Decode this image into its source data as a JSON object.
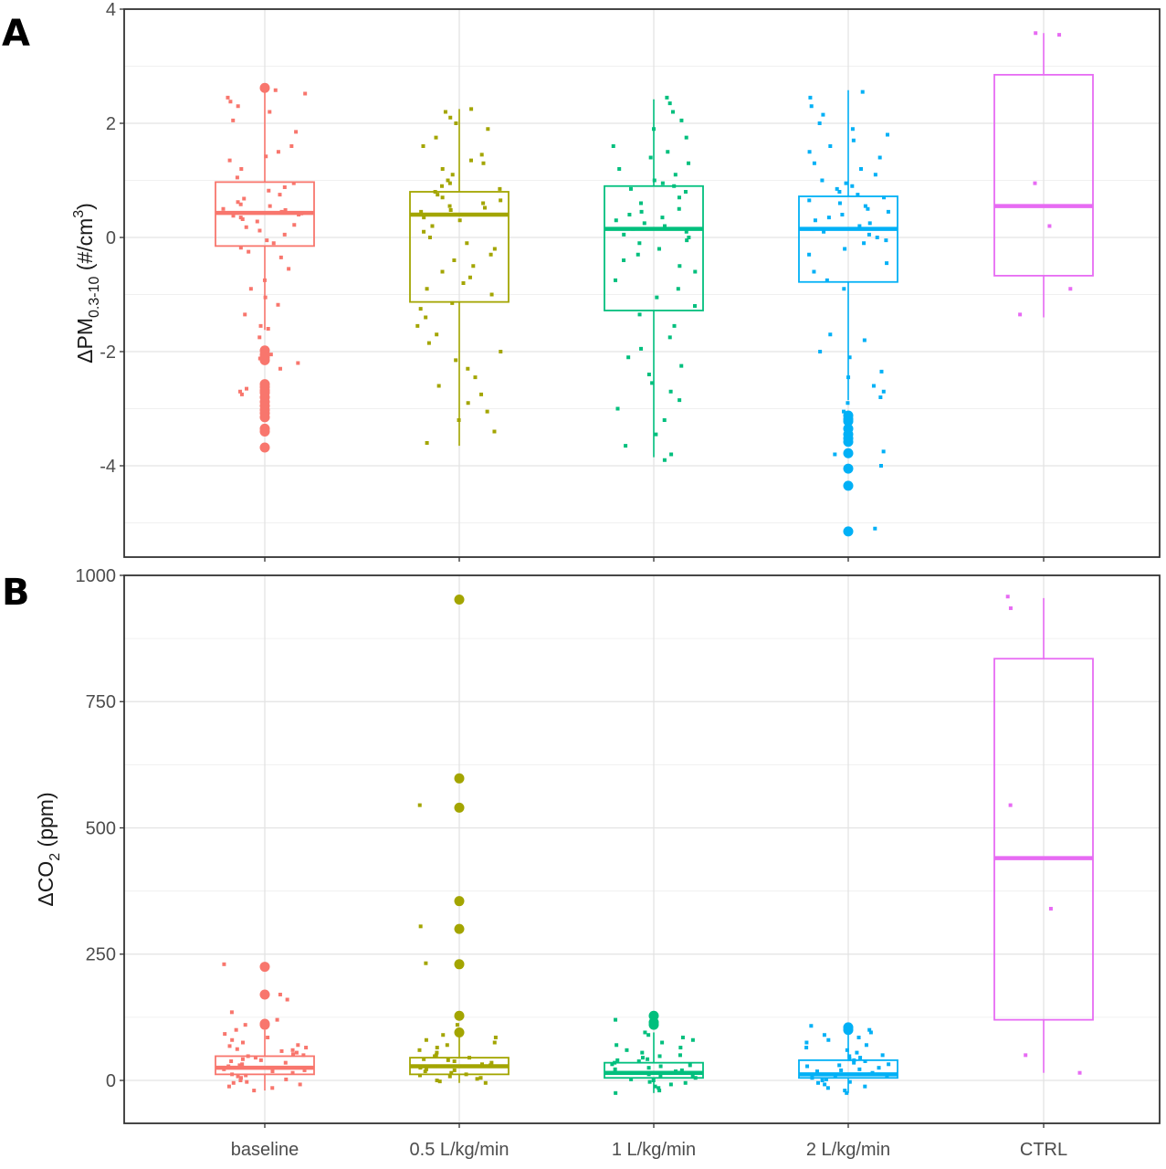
{
  "chart_data": [
    {
      "type": "box",
      "panel_label": "A",
      "ylabel": {
        "prefix": "ΔPM",
        "subscript": "0.3-10",
        "unit_open": " (#/cm",
        "superscript": "3",
        "unit_close": ")"
      },
      "ylim": [
        -5.6,
        4.0
      ],
      "yticks": [
        -4,
        -2,
        0,
        2,
        4
      ],
      "grid": true,
      "categories": [
        "baseline",
        "0.5 L/kg/min",
        "1 L/kg/min",
        "2 L/kg/min",
        "CTRL"
      ],
      "colors": [
        "#F8766D",
        "#A3A500",
        "#00BF7D",
        "#00B0F6",
        "#E76BF3"
      ],
      "boxes": [
        {
          "q1": -0.15,
          "median": 0.43,
          "q3": 0.97,
          "whisker_low": -1.62,
          "whisker_high": 2.62
        },
        {
          "q1": -1.13,
          "median": 0.4,
          "q3": 0.8,
          "whisker_low": -3.65,
          "whisker_high": 2.25
        },
        {
          "q1": -1.28,
          "median": 0.15,
          "q3": 0.9,
          "whisker_low": -3.85,
          "whisker_high": 2.42
        },
        {
          "q1": -0.78,
          "median": 0.15,
          "q3": 0.72,
          "whisker_low": -2.85,
          "whisker_high": 2.58
        },
        {
          "q1": -0.67,
          "median": 0.55,
          "q3": 2.85,
          "whisker_low": -1.4,
          "whisker_high": 3.58
        }
      ],
      "outliers": [
        [
          2.62,
          -1.98,
          -2.05,
          -2.1,
          -2.15,
          -2.57,
          -2.62,
          -2.68,
          -2.72,
          -2.8,
          -2.88,
          -2.95,
          -3.02,
          -3.08,
          -3.15,
          -3.35,
          -3.4,
          -3.68
        ],
        [],
        [],
        [
          -3.12,
          -3.18,
          -3.22,
          -3.35,
          -3.45,
          -3.52,
          -3.58,
          -3.78,
          -4.05,
          -4.35,
          -5.15
        ],
        []
      ],
      "jitter": [
        [
          2.58,
          2.52,
          2.45,
          2.38,
          2.3,
          2.2,
          2.05,
          1.85,
          1.6,
          1.5,
          1.42,
          1.35,
          1.2,
          1.05,
          0.95,
          0.88,
          0.82,
          0.75,
          0.68,
          0.62,
          0.58,
          0.55,
          0.5,
          0.48,
          0.45,
          0.42,
          0.4,
          0.38,
          0.35,
          0.32,
          0.28,
          0.22,
          0.18,
          0.12,
          0.05,
          -0.05,
          -0.1,
          -0.18,
          -0.25,
          -0.35,
          -0.55,
          -0.75,
          -0.9,
          -1.05,
          -1.18,
          -1.35,
          -1.55,
          -1.6,
          -1.75,
          -1.95,
          -2.05,
          -2.12,
          -2.2,
          -2.3,
          -2.55,
          -2.65,
          -2.7,
          -2.75
        ],
        [
          2.25,
          2.2,
          2.1,
          2.0,
          1.9,
          1.75,
          1.6,
          1.45,
          1.35,
          1.3,
          1.2,
          1.1,
          1.0,
          0.95,
          0.9,
          0.85,
          0.8,
          0.75,
          0.7,
          0.65,
          0.6,
          0.55,
          0.52,
          0.48,
          0.45,
          0.4,
          0.35,
          0.3,
          0.2,
          0.1,
          0.0,
          -0.1,
          -0.2,
          -0.3,
          -0.4,
          -0.5,
          -0.6,
          -0.7,
          -0.8,
          -0.9,
          -1.0,
          -1.15,
          -1.25,
          -1.4,
          -1.55,
          -1.7,
          -1.85,
          -2.0,
          -2.15,
          -2.3,
          -2.45,
          -2.6,
          -2.75,
          -2.9,
          -3.05,
          -3.2,
          -3.4,
          -3.6
        ],
        [
          2.45,
          2.35,
          2.2,
          2.05,
          1.9,
          1.75,
          1.6,
          1.5,
          1.4,
          1.3,
          1.2,
          1.1,
          1.0,
          0.95,
          0.9,
          0.85,
          0.8,
          0.7,
          0.6,
          0.5,
          0.45,
          0.4,
          0.35,
          0.3,
          0.25,
          0.2,
          0.15,
          0.1,
          0.05,
          0.0,
          -0.05,
          -0.1,
          -0.2,
          -0.3,
          -0.4,
          -0.5,
          -0.6,
          -0.75,
          -0.9,
          -1.05,
          -1.2,
          -1.35,
          -1.55,
          -1.75,
          -1.95,
          -2.1,
          -2.25,
          -2.4,
          -2.55,
          -2.7,
          -2.85,
          -3.0,
          -3.2,
          -3.45,
          -3.65,
          -3.8,
          -3.9
        ],
        [
          2.55,
          2.45,
          2.3,
          2.15,
          2.0,
          1.9,
          1.8,
          1.7,
          1.6,
          1.5,
          1.4,
          1.3,
          1.2,
          1.1,
          1.0,
          0.95,
          0.9,
          0.85,
          0.8,
          0.75,
          0.7,
          0.65,
          0.6,
          0.55,
          0.5,
          0.45,
          0.4,
          0.35,
          0.3,
          0.25,
          0.2,
          0.15,
          0.1,
          0.05,
          0.0,
          -0.05,
          -0.1,
          -0.2,
          -0.3,
          -0.45,
          -0.6,
          -0.75,
          -0.9,
          -1.7,
          -1.8,
          -2.0,
          -2.1,
          -2.35,
          -2.45,
          -2.6,
          -2.7,
          -2.8,
          -2.9,
          -3.05,
          -3.15,
          -3.75,
          -3.8,
          -4.0,
          -5.1
        ],
        [
          3.55,
          3.58,
          0.95,
          0.2,
          -0.9,
          -1.35
        ]
      ]
    },
    {
      "type": "box",
      "panel_label": "B",
      "ylabel": {
        "prefix": "ΔCO",
        "subscript": "2",
        "unit_open": " (ppm)",
        "superscript": "",
        "unit_close": ""
      },
      "ylim": [
        -85,
        1000
      ],
      "yticks": [
        0,
        250,
        500,
        750,
        1000
      ],
      "grid": true,
      "categories": [
        "baseline",
        "0.5 L/kg/min",
        "1 L/kg/min",
        "2 L/kg/min",
        "CTRL"
      ],
      "colors": [
        "#F8766D",
        "#A3A500",
        "#00BF7D",
        "#00B0F6",
        "#E76BF3"
      ],
      "boxes": [
        {
          "q1": 12,
          "median": 25,
          "q3": 48,
          "whisker_low": -20,
          "whisker_high": 100
        },
        {
          "q1": 12,
          "median": 28,
          "q3": 45,
          "whisker_low": -5,
          "whisker_high": 90
        },
        {
          "q1": 5,
          "median": 15,
          "q3": 35,
          "whisker_low": -25,
          "whisker_high": 95
        },
        {
          "q1": 5,
          "median": 12,
          "q3": 40,
          "whisker_low": -25,
          "whisker_high": 95
        },
        {
          "q1": 120,
          "median": 440,
          "q3": 835,
          "whisker_low": 15,
          "whisker_high": 955
        }
      ],
      "outliers": [
        [
          225,
          170,
          112,
          110
        ],
        [
          952,
          598,
          540,
          355,
          300,
          230,
          128,
          95
        ],
        [
          128,
          115,
          110
        ],
        [
          105,
          100
        ],
        []
      ],
      "jitter": [
        [
          230,
          170,
          160,
          135,
          120,
          110,
          100,
          92,
          85,
          80,
          75,
          70,
          68,
          65,
          62,
          60,
          58,
          55,
          52,
          50,
          48,
          45,
          42,
          40,
          38,
          35,
          32,
          30,
          28,
          25,
          22,
          20,
          18,
          15,
          12,
          10,
          8,
          5,
          2,
          0,
          -3,
          -5,
          -8,
          -12,
          -15,
          -20
        ],
        [
          545,
          305,
          232,
          110,
          90,
          85,
          80,
          75,
          70,
          65,
          60,
          55,
          50,
          48,
          45,
          42,
          40,
          38,
          35,
          32,
          30,
          28,
          25,
          22,
          20,
          18,
          15,
          12,
          10,
          8,
          5,
          3,
          0,
          -2,
          -5
        ],
        [
          120,
          95,
          90,
          85,
          80,
          75,
          70,
          65,
          60,
          55,
          50,
          48,
          45,
          42,
          40,
          38,
          35,
          32,
          30,
          28,
          25,
          22,
          20,
          18,
          15,
          12,
          10,
          8,
          5,
          2,
          0,
          -3,
          -5,
          -8,
          -12,
          -15,
          -20,
          -25
        ],
        [
          108,
          100,
          95,
          90,
          85,
          80,
          75,
          70,
          65,
          60,
          55,
          50,
          48,
          45,
          42,
          40,
          38,
          35,
          32,
          30,
          28,
          25,
          22,
          20,
          18,
          15,
          12,
          10,
          8,
          5,
          2,
          0,
          -3,
          -5,
          -8,
          -12,
          -15,
          -20,
          -25
        ],
        [
          958,
          935,
          545,
          340,
          50,
          15
        ]
      ]
    }
  ]
}
